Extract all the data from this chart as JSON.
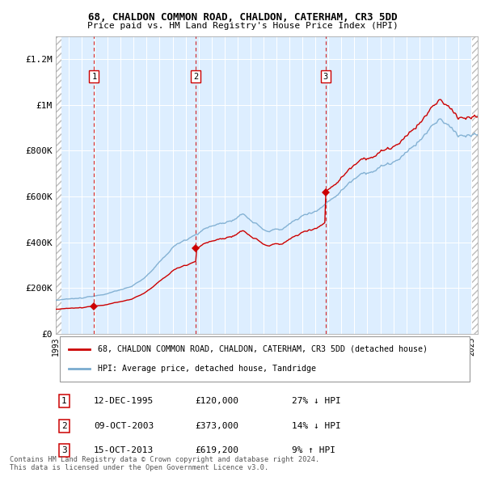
{
  "title1": "68, CHALDON COMMON ROAD, CHALDON, CATERHAM, CR3 5DD",
  "title2": "Price paid vs. HM Land Registry's House Price Index (HPI)",
  "xmin": 1993.0,
  "xmax": 2025.5,
  "ymin": 0,
  "ymax": 1300000,
  "yticks": [
    0,
    200000,
    400000,
    600000,
    800000,
    1000000,
    1200000
  ],
  "ytick_labels": [
    "£0",
    "£200K",
    "£400K",
    "£600K",
    "£800K",
    "£1M",
    "£1.2M"
  ],
  "xticks": [
    1993,
    1994,
    1995,
    1996,
    1997,
    1998,
    1999,
    2000,
    2001,
    2002,
    2003,
    2004,
    2005,
    2006,
    2007,
    2008,
    2009,
    2010,
    2011,
    2012,
    2013,
    2014,
    2015,
    2016,
    2017,
    2018,
    2019,
    2020,
    2021,
    2022,
    2023,
    2024,
    2025
  ],
  "sale_dates": [
    1995.95,
    2003.78,
    2013.79
  ],
  "sale_prices": [
    120000,
    373000,
    619200
  ],
  "sale_labels": [
    "1",
    "2",
    "3"
  ],
  "red_color": "#cc0000",
  "blue_color": "#7aabcf",
  "bg_color": "#ddeeff",
  "legend1": "68, CHALDON COMMON ROAD, CHALDON, CATERHAM, CR3 5DD (detached house)",
  "legend2": "HPI: Average price, detached house, Tandridge",
  "table_entries": [
    {
      "num": "1",
      "date": "12-DEC-1995",
      "price": "£120,000",
      "hpi": "27% ↓ HPI"
    },
    {
      "num": "2",
      "date": "09-OCT-2003",
      "price": "£373,000",
      "hpi": "14% ↓ HPI"
    },
    {
      "num": "3",
      "date": "15-OCT-2013",
      "price": "£619,200",
      "hpi": "9% ↑ HPI"
    }
  ],
  "footnote1": "Contains HM Land Registry data © Crown copyright and database right 2024.",
  "footnote2": "This data is licensed under the Open Government Licence v3.0."
}
